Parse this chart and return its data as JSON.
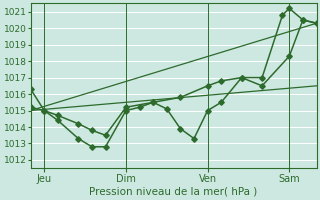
{
  "title": "",
  "xlabel": "Pression niveau de la mer( hPa )",
  "ylabel": "",
  "bg_color": "#cde8e0",
  "grid_color": "#ffffff",
  "line_color": "#2d6b2d",
  "ylim": [
    1011.5,
    1021.5
  ],
  "xlim": [
    0,
    84
  ],
  "yticks": [
    1012,
    1013,
    1014,
    1015,
    1016,
    1017,
    1018,
    1019,
    1020,
    1021
  ],
  "xtick_positions": [
    4,
    28,
    52,
    76
  ],
  "xtick_labels": [
    "Jeu",
    "Dim",
    "Ven",
    "Sam"
  ],
  "vline_positions": [
    4,
    28,
    52,
    76
  ],
  "series": [
    {
      "x": [
        0,
        4,
        8,
        14,
        18,
        22,
        28,
        32,
        36,
        40,
        44,
        48,
        52,
        56,
        62,
        68,
        74,
        76,
        80,
        84
      ],
      "y": [
        1016.3,
        1015.0,
        1014.4,
        1013.3,
        1012.8,
        1012.8,
        1015.0,
        1015.2,
        1015.5,
        1015.1,
        1013.9,
        1013.3,
        1015.0,
        1015.5,
        1017.0,
        1017.0,
        1020.8,
        1021.2,
        1020.5,
        1020.3
      ],
      "marker": "D",
      "markersize": 2.8,
      "linewidth": 1.1
    },
    {
      "x": [
        0,
        4,
        8,
        14,
        18,
        22,
        28,
        36,
        44,
        52,
        56,
        62,
        68,
        76,
        80,
        84
      ],
      "y": [
        1015.2,
        1015.0,
        1014.7,
        1014.2,
        1013.8,
        1013.5,
        1015.2,
        1015.5,
        1015.8,
        1016.5,
        1016.8,
        1017.0,
        1016.5,
        1018.3,
        1020.5,
        1020.3
      ],
      "marker": "D",
      "markersize": 2.8,
      "linewidth": 1.1
    },
    {
      "x": [
        0,
        84
      ],
      "y": [
        1015.0,
        1016.5
      ],
      "marker": null,
      "markersize": 0,
      "linewidth": 0.9
    },
    {
      "x": [
        0,
        84
      ],
      "y": [
        1015.0,
        1020.3
      ],
      "marker": null,
      "markersize": 0,
      "linewidth": 0.9
    }
  ]
}
